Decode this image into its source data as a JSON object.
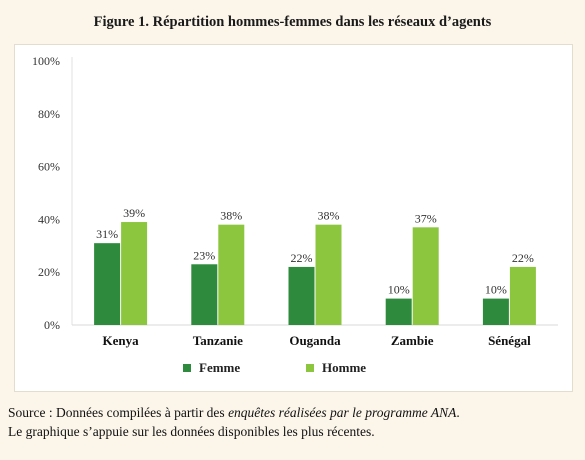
{
  "title": "Figure 1. Répartition hommes-femmes dans les réseaux d’agents",
  "source": {
    "part1": "Source : Données compilées à partir des ",
    "italic": "enquêtes réalisées par le programme ANA",
    "part2": ".",
    "line2": "Le graphique s’appuie sur les données disponibles les plus récentes."
  },
  "chart_data": {
    "type": "bar",
    "title": "",
    "xlabel": "",
    "ylabel": "",
    "categories": [
      "Kenya",
      "Tanzanie",
      "Ouganda",
      "Zambie",
      "Sénégal"
    ],
    "series": [
      {
        "name": "Femme",
        "values": [
          31,
          23,
          22,
          10,
          10
        ],
        "labels": [
          "31%",
          "23%",
          "22%",
          "10%",
          "10%"
        ],
        "color": "#2e8b3e"
      },
      {
        "name": "Homme",
        "values": [
          39,
          38,
          38,
          37,
          22
        ],
        "labels": [
          "39%",
          "38%",
          "38%",
          "37%",
          "22%"
        ],
        "color": "#8cc63f"
      }
    ],
    "ylim": [
      0,
      100
    ],
    "yticks": [
      0,
      20,
      40,
      60,
      80,
      100
    ],
    "ytick_labels": [
      "0%",
      "20%",
      "40%",
      "60%",
      "80%",
      "100%"
    ],
    "grid": false,
    "legend_position": "bottom"
  }
}
